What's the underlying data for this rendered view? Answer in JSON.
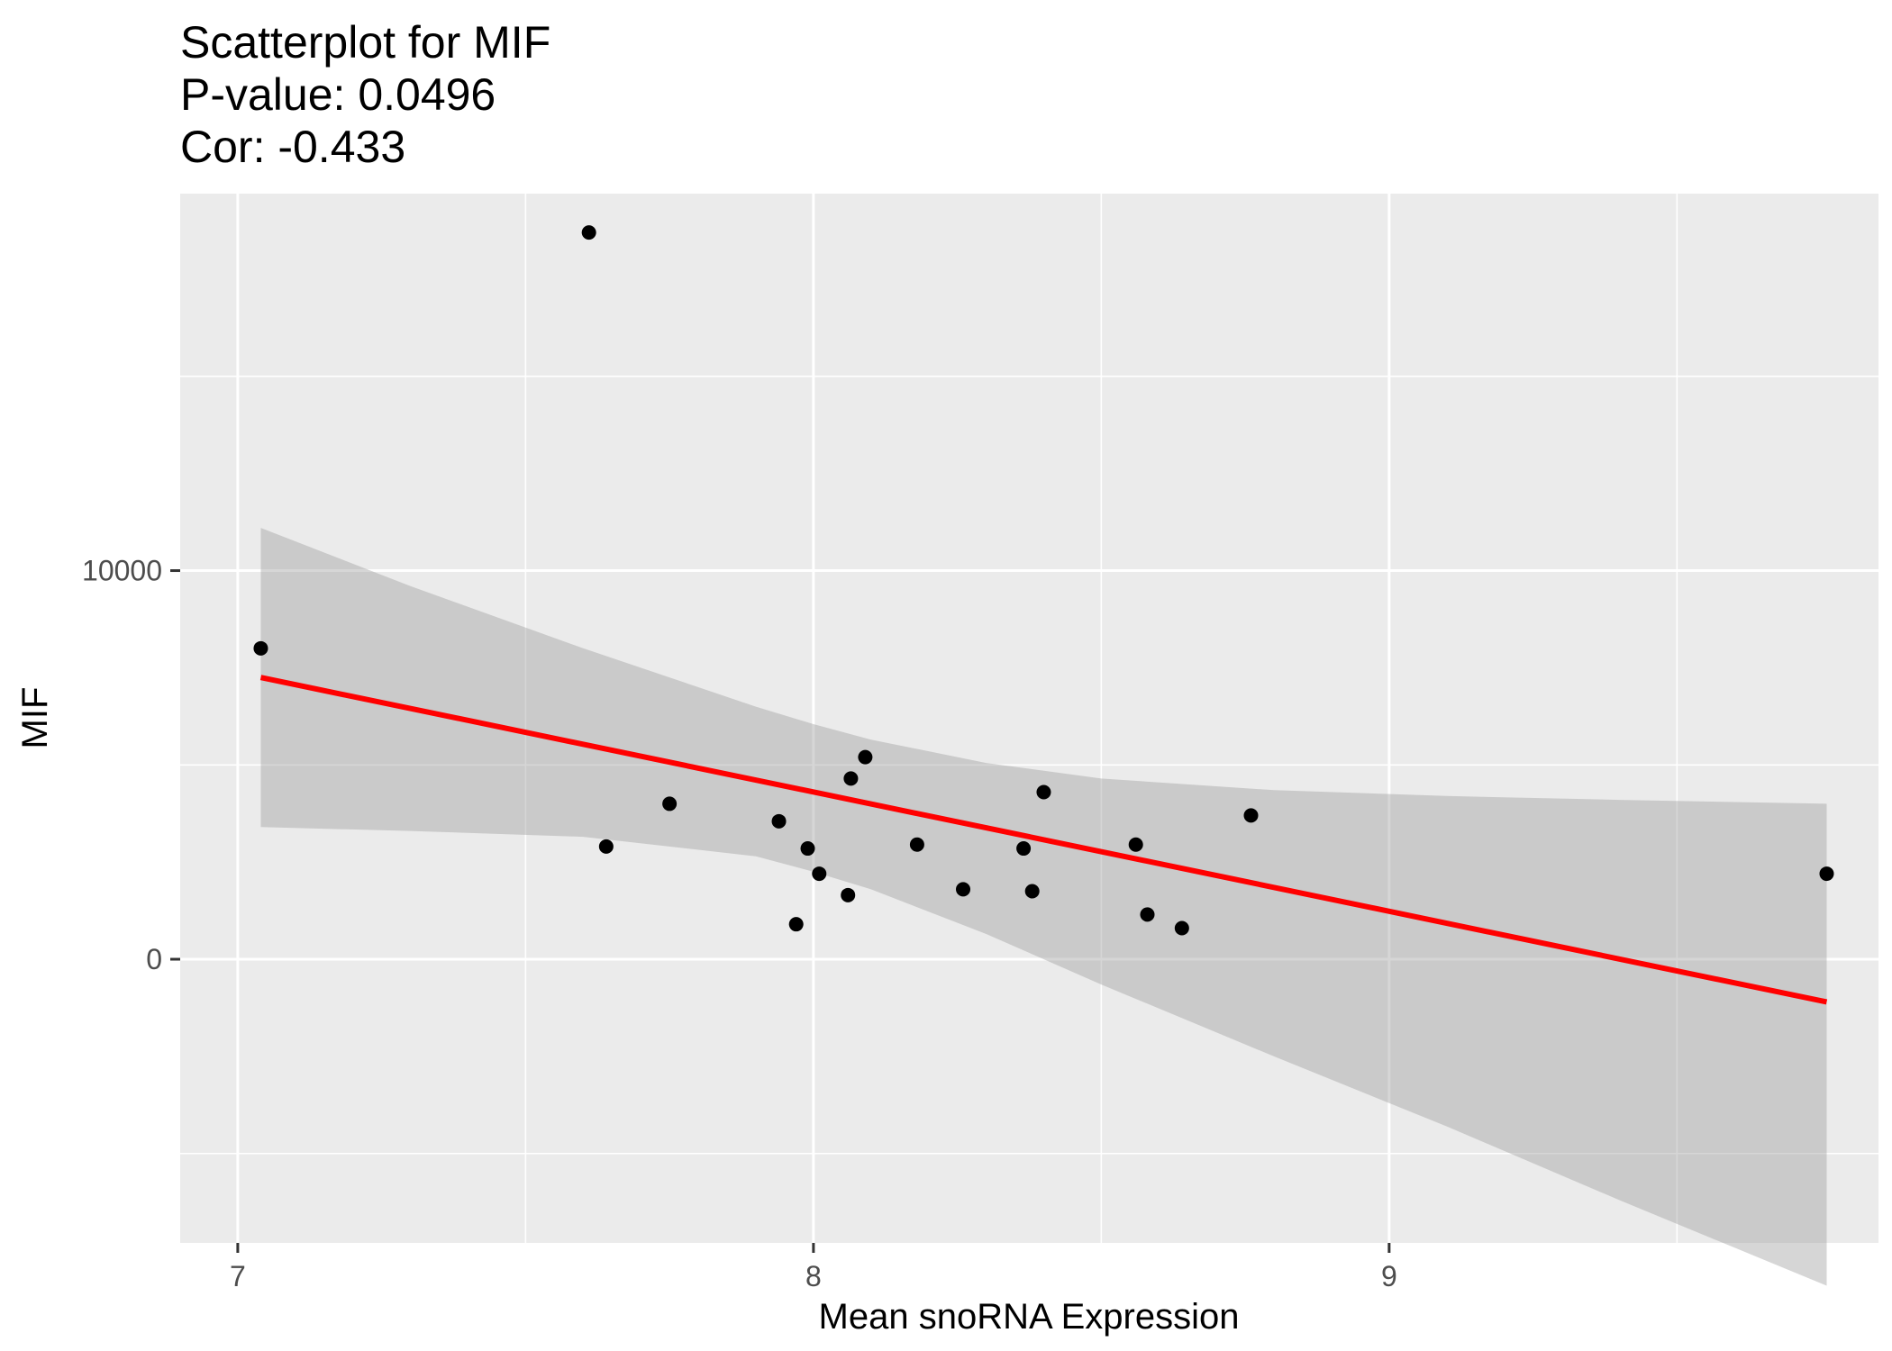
{
  "chart_data": {
    "type": "scatter",
    "title": "Scatterplot for MIF",
    "subtitle_lines": [
      "P-value: 0.0496",
      "Cor: -0.433"
    ],
    "xlabel": "Mean snoRNA Expression",
    "ylabel": "MIF",
    "xlim": [
      6.9,
      9.85
    ],
    "ylim": [
      -7300,
      19700
    ],
    "x_ticks": [
      {
        "value": 7,
        "label": "7"
      },
      {
        "value": 8,
        "label": "8"
      },
      {
        "value": 9,
        "label": "9"
      }
    ],
    "x_minor": [
      7.5,
      8.5,
      9.5
    ],
    "y_ticks": [
      {
        "value": 0,
        "label": "0"
      },
      {
        "value": 10000,
        "label": "10000"
      }
    ],
    "y_minor": [
      -5000,
      5000,
      15000
    ],
    "grid": true,
    "points": [
      {
        "x": 7.04,
        "y": 8000
      },
      {
        "x": 7.61,
        "y": 18700
      },
      {
        "x": 7.64,
        "y": 2900
      },
      {
        "x": 7.75,
        "y": 4000
      },
      {
        "x": 7.94,
        "y": 3550
      },
      {
        "x": 7.97,
        "y": 900
      },
      {
        "x": 7.99,
        "y": 2850
      },
      {
        "x": 8.01,
        "y": 2200
      },
      {
        "x": 8.06,
        "y": 1650
      },
      {
        "x": 8.065,
        "y": 4650
      },
      {
        "x": 8.09,
        "y": 5200
      },
      {
        "x": 8.18,
        "y": 2950
      },
      {
        "x": 8.26,
        "y": 1800
      },
      {
        "x": 8.365,
        "y": 2850
      },
      {
        "x": 8.38,
        "y": 1750
      },
      {
        "x": 8.4,
        "y": 4300
      },
      {
        "x": 8.56,
        "y": 2950
      },
      {
        "x": 8.58,
        "y": 1150
      },
      {
        "x": 8.64,
        "y": 800
      },
      {
        "x": 8.76,
        "y": 3700
      },
      {
        "x": 9.76,
        "y": 2200
      }
    ],
    "fit": {
      "x": [
        7.04,
        9.76
      ],
      "y": [
        7250,
        -1100
      ]
    },
    "confidence_band": {
      "x": [
        7.04,
        7.3,
        7.6,
        7.9,
        8.0,
        8.1,
        8.3,
        8.5,
        8.8,
        9.1,
        9.4,
        9.76
      ],
      "upper": [
        11100,
        9600,
        8000,
        6500,
        6050,
        5650,
        5050,
        4650,
        4350,
        4200,
        4100,
        4000
      ],
      "lower": [
        3400,
        3300,
        3150,
        2650,
        2250,
        1800,
        650,
        -650,
        -2500,
        -4300,
        -6200,
        -8400
      ]
    },
    "colors": {
      "panel": "#ebebeb",
      "grid": "#ffffff",
      "point": "#000000",
      "fit": "#ff0000",
      "band": "#999999"
    }
  }
}
